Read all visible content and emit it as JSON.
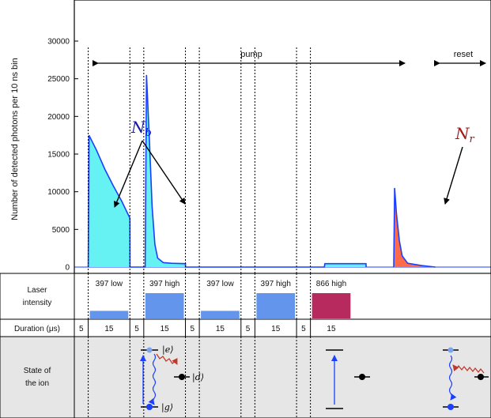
{
  "chart_data": {
    "type": "area",
    "ylabel": "Number of detected photons per 10 ns bin",
    "yticks": [
      "0",
      "5000",
      "10000",
      "15000",
      "20000",
      "25000",
      "30000"
    ],
    "ylim": [
      0,
      36000
    ],
    "xlim_us": [
      0,
      150
    ],
    "series": [
      {
        "label": "N_b",
        "color": "#1a3fff",
        "fill": "#66f2f2",
        "points": [
          [
            5,
            0
          ],
          [
            5.3,
            17500
          ],
          [
            8,
            15500
          ],
          [
            11,
            13000
          ],
          [
            14,
            10800
          ],
          [
            17,
            8800
          ],
          [
            20,
            6500
          ],
          [
            20.05,
            0
          ],
          [
            25.5,
            0
          ],
          [
            26,
            25500
          ],
          [
            27,
            17000
          ],
          [
            28,
            8000
          ],
          [
            29,
            3000
          ],
          [
            30,
            1200
          ],
          [
            32,
            600
          ],
          [
            35,
            500
          ],
          [
            40,
            450
          ],
          [
            40.05,
            0
          ],
          [
            90,
            0
          ],
          [
            90.2,
            450
          ],
          [
            105,
            450
          ],
          [
            105.05,
            0
          ]
        ]
      },
      {
        "label": "N_r",
        "color": "#1a3fff",
        "fill": "#ff6b4a",
        "points": [
          [
            115,
            0
          ],
          [
            115.3,
            10500
          ],
          [
            116,
            7000
          ],
          [
            117,
            3500
          ],
          [
            118,
            1500
          ],
          [
            120,
            500
          ],
          [
            125,
            200
          ],
          [
            130,
            0
          ]
        ]
      }
    ],
    "annotations": {
      "pump": "pump",
      "reset": "reset",
      "nb_main": "N",
      "nb_sub": "b",
      "nr_main": "N",
      "nr_sub": "r"
    }
  },
  "table": {
    "laser_header_line1": "Laser",
    "laser_header_line2": "intensity",
    "duration_header": "Duration (μs)",
    "state_header_line1": "State of",
    "state_header_line2": "the ion",
    "phases": [
      {
        "duration": "5",
        "laser": "",
        "level": 0,
        "color": ""
      },
      {
        "duration": "15",
        "laser": "397 low",
        "level": 0.3,
        "color": "#6495ed"
      },
      {
        "duration": "5",
        "laser": "",
        "level": 0,
        "color": ""
      },
      {
        "duration": "15",
        "laser": "397 high",
        "level": 1,
        "color": "#6495ed"
      },
      {
        "duration": "5",
        "laser": "",
        "level": 0,
        "color": ""
      },
      {
        "duration": "15",
        "laser": "397 low",
        "level": 0.3,
        "color": "#6495ed"
      },
      {
        "duration": "5",
        "laser": "",
        "level": 0,
        "color": ""
      },
      {
        "duration": "15",
        "laser": "397 high",
        "level": 1,
        "color": "#6495ed"
      },
      {
        "duration": "5",
        "laser": "",
        "level": 0,
        "color": ""
      },
      {
        "duration": "15",
        "laser": "866 high",
        "level": 1,
        "color": "#b72a5d"
      }
    ],
    "states": {
      "e": "|e⟩",
      "d": "|d⟩",
      "g": "|g⟩"
    }
  }
}
